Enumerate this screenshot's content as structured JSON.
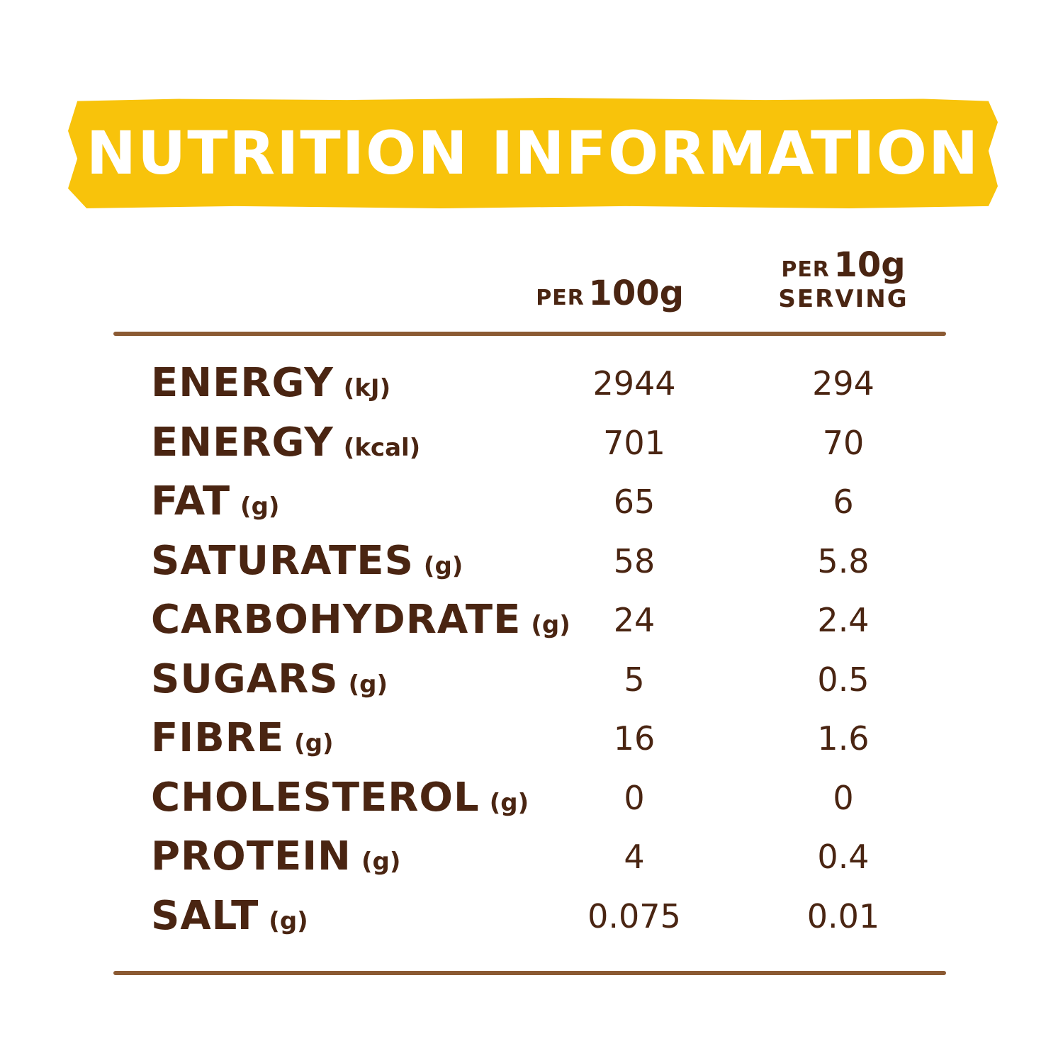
{
  "title": "NUTRITION INFORMATION",
  "colors": {
    "banner": "#f8c30b",
    "text": "#4a2512",
    "rule": "#8b5a33"
  },
  "columns": {
    "per100": {
      "prefix": "PER",
      "amount": "100g"
    },
    "per10": {
      "prefix": "PER",
      "amount": "10g",
      "suffix": "SERVING"
    }
  },
  "rows": [
    {
      "name": "ENERGY",
      "unit": "(kJ)",
      "per100": "2944",
      "per10": "294"
    },
    {
      "name": "ENERGY",
      "unit": "(kcal)",
      "per100": "701",
      "per10": "70"
    },
    {
      "name": "FAT",
      "unit": "(g)",
      "per100": "65",
      "per10": "6"
    },
    {
      "name": "SATURATES",
      "unit": "(g)",
      "per100": "58",
      "per10": "5.8"
    },
    {
      "name": "CARBOHYDRATE",
      "unit": "(g)",
      "per100": "24",
      "per10": "2.4"
    },
    {
      "name": "SUGARS",
      "unit": "(g)",
      "per100": "5",
      "per10": "0.5"
    },
    {
      "name": "FIBRE",
      "unit": "(g)",
      "per100": "16",
      "per10": "1.6"
    },
    {
      "name": "CHOLESTEROL",
      "unit": "(g)",
      "per100": "0",
      "per10": "0"
    },
    {
      "name": "PROTEIN",
      "unit": "(g)",
      "per100": "4",
      "per10": "0.4"
    },
    {
      "name": "SALT",
      "unit": "(g)",
      "per100": "0.075",
      "per10": "0.01"
    }
  ]
}
